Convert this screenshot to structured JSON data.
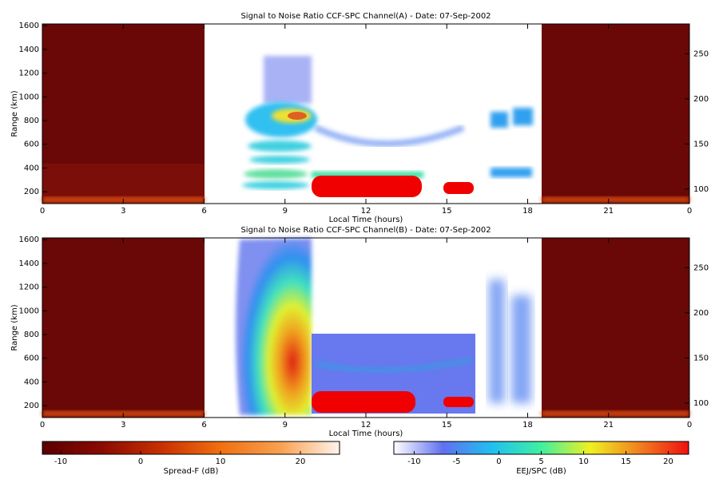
{
  "chart_data": [
    {
      "type": "heatmap",
      "title": "Signal to Noise Ratio CCF-SPC Channel(A) - Date: 07-Sep-2002",
      "x_label": "Local Time (hours)",
      "y_label": "Range (km)",
      "xlim": [
        0,
        24
      ],
      "xticks": [
        0,
        3,
        6,
        9,
        12,
        15,
        18,
        21,
        {
          "value": 24,
          "label": "0"
        }
      ],
      "ylim": [
        100,
        1615
      ],
      "yticks": [
        200,
        400,
        600,
        800,
        1000,
        1200,
        1400,
        1600
      ],
      "y2lim": [
        84,
        283
      ],
      "y2ticks": [
        100,
        150,
        200,
        250
      ]
    },
    {
      "type": "heatmap",
      "title": "Signal to Noise Ratio CCF-SPC Channel(B) - Date: 07-Sep-2002",
      "x_label": "Local Time (hours)",
      "y_label": "Range (km)",
      "xlim": [
        0,
        24
      ],
      "xticks": [
        0,
        3,
        6,
        9,
        12,
        15,
        18,
        21,
        {
          "value": 24,
          "label": "0"
        }
      ],
      "ylim": [
        100,
        1615
      ],
      "yticks": [
        200,
        400,
        600,
        800,
        1000,
        1200,
        1400,
        1600
      ],
      "y2lim": [
        84,
        283
      ],
      "y2ticks": [
        100,
        150,
        200,
        250
      ]
    }
  ],
  "colorbars": [
    {
      "label": "Spread-F (dB)",
      "lim": [
        -12.3,
        24.9
      ],
      "ticks": [
        -10,
        0,
        10,
        20
      ],
      "colors": [
        "#5a0000",
        "#8a0a00",
        "#c83000",
        "#f07010",
        "#f8a050",
        "#fff4ec"
      ]
    },
    {
      "label": "EEJ/SPC (dB)",
      "lim": [
        -12.4,
        22.4
      ],
      "ticks": [
        -10,
        -5,
        0,
        5,
        10,
        15,
        20
      ],
      "colors": [
        "#ffffff",
        "#6070f0",
        "#20c0f0",
        "#40f0a0",
        "#f0f020",
        "#f08020",
        "#f01010"
      ]
    }
  ]
}
